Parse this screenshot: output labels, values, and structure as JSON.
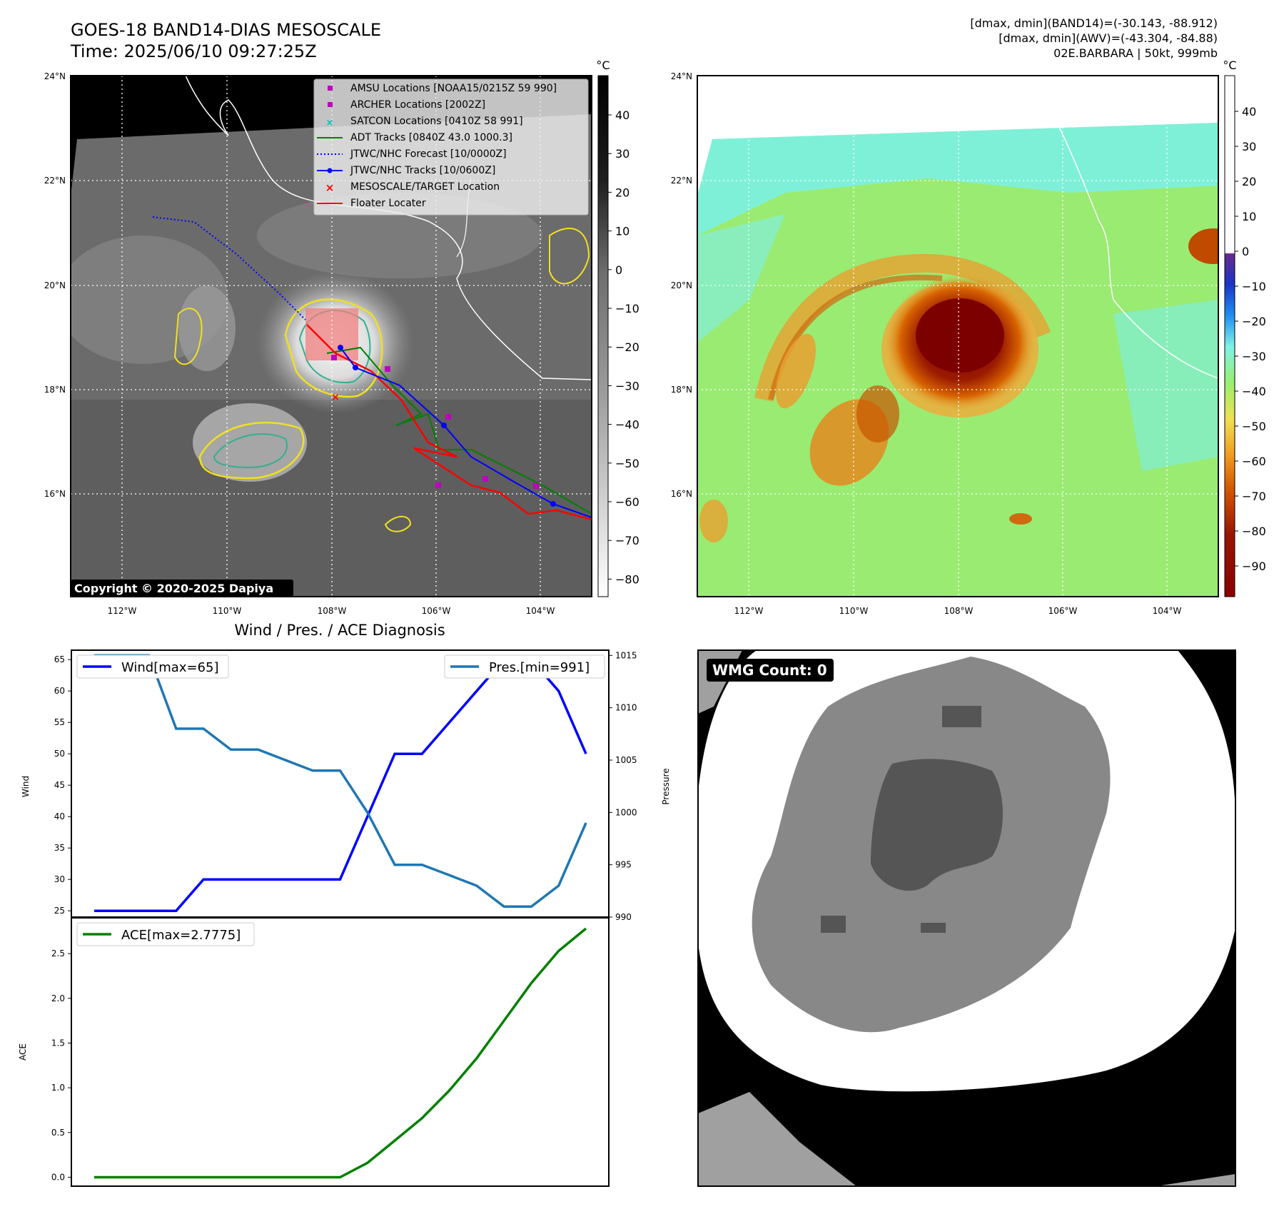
{
  "header": {
    "title_line1": "GOES-18 BAND14-DIAS MESOSCALE",
    "title_line2": "Time: 2025/06/10 09:27:25Z",
    "info_line1": "[dmax, dmin](BAND14)=(-30.143, -88.912)",
    "info_line2": "[dmax, dmin](AWV)=(-43.304, -84.88)",
    "info_line3": "02E.BARBARA | 50kt, 999mb"
  },
  "map": {
    "lat_labels": [
      "24°N",
      "22°N",
      "20°N",
      "18°N",
      "16°N"
    ],
    "lon_labels": [
      "112°W",
      "110°W",
      "108°W",
      "106°W",
      "104°W"
    ],
    "copyright": "Copyright © 2020-2025 Dapiya",
    "colorbar_unit": "°C",
    "ir_colorbar_ticks": [
      "40",
      "30",
      "20",
      "10",
      "0",
      "−10",
      "−20",
      "−30",
      "−40",
      "−50",
      "−60",
      "−70",
      "−80"
    ],
    "enh_colorbar_ticks": [
      "40",
      "30",
      "20",
      "10",
      "0",
      "−10",
      "−20",
      "−30",
      "−40",
      "−50",
      "−60",
      "−70",
      "−80",
      "−90"
    ],
    "legend": [
      {
        "label": "AMSU Locations [NOAA15/0215Z 59 990]",
        "marker": "square",
        "color": "#c000c0"
      },
      {
        "label": "ARCHER Locations [2002Z]",
        "marker": "square",
        "color": "#c000c0"
      },
      {
        "label": "SATCON Locations [0410Z 58 991]",
        "marker": "x",
        "color": "#00bfbf"
      },
      {
        "label": "ADT Tracks [0840Z 43.0 1000.3]",
        "marker": "line",
        "color": "#008000"
      },
      {
        "label": "JTWC/NHC Forecast [10/0000Z]",
        "marker": "dotted",
        "color": "#0000ff"
      },
      {
        "label": "JTWC/NHC Tracks [10/0600Z]",
        "marker": "line-dot",
        "color": "#0000ff"
      },
      {
        "label": "MESOSCALE/TARGET Location",
        "marker": "x",
        "color": "#ff0000"
      },
      {
        "label": "Floater Locater",
        "marker": "line",
        "color": "#ff0000"
      }
    ]
  },
  "wmg": {
    "label": "WMG Count: 0"
  },
  "chart_data": [
    {
      "type": "line",
      "title": "Wind / Pres. / ACE Diagnosis",
      "xlabel": "",
      "ylabel": "Wind",
      "ylabel_right": "Pressure",
      "ylim": [
        24,
        66.5
      ],
      "ylim_right": [
        990,
        1015.5
      ],
      "yticks": [
        25,
        30,
        35,
        40,
        45,
        50,
        55,
        60,
        65
      ],
      "yticks_right": [
        990,
        995,
        1000,
        1005,
        1010,
        1015
      ],
      "x": [
        0,
        1,
        2,
        3,
        4,
        5,
        6,
        7,
        8,
        9,
        10,
        11,
        12,
        13,
        14,
        15,
        16,
        17,
        18
      ],
      "series": [
        {
          "name": "Wind[max=65]",
          "axis": "left",
          "color": "#0000ff",
          "values": [
            25,
            25,
            25,
            25,
            30,
            30,
            30,
            30,
            30,
            30,
            40,
            50,
            50,
            55,
            60,
            65,
            65,
            60,
            50
          ]
        },
        {
          "name": "Pres.[min=991]",
          "axis": "right",
          "color": "#1f77b4",
          "values": [
            1015,
            1015,
            1015,
            1008,
            1008,
            1006,
            1006,
            1005,
            1004,
            1004,
            1000,
            995,
            995,
            994,
            993,
            991,
            991,
            993,
            999
          ]
        }
      ],
      "legend": [
        "top-left",
        "top-right"
      ]
    },
    {
      "type": "line",
      "ylabel": "ACE",
      "ylim": [
        -0.1,
        2.9
      ],
      "yticks": [
        0.0,
        0.5,
        1.0,
        1.5,
        2.0,
        2.5
      ],
      "ytick_labels": [
        "0.0",
        "0.5",
        "1.0",
        "1.5",
        "2.0",
        "2.5"
      ],
      "x": [
        0,
        1,
        2,
        3,
        4,
        5,
        6,
        7,
        8,
        9,
        10,
        11,
        12,
        13,
        14,
        15,
        16,
        17,
        18
      ],
      "series": [
        {
          "name": "ACE[max=2.7775]",
          "color": "#008000",
          "values": [
            0,
            0,
            0,
            0,
            0,
            0,
            0,
            0,
            0,
            0,
            0.16,
            0.41,
            0.66,
            0.97,
            1.33,
            1.75,
            2.17,
            2.53,
            2.78
          ]
        }
      ],
      "legend": "top-left"
    }
  ]
}
